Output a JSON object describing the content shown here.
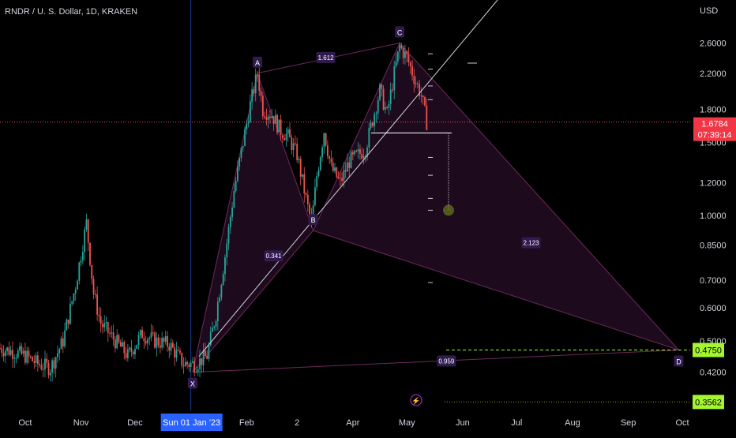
{
  "header": {
    "symbol": "RNDR / U. S. Dollar, 1D, KRAKEN"
  },
  "axis": {
    "currency": "USD",
    "price_ticks": [
      "2.6000",
      "2.2000",
      "1.8000",
      "1.5000",
      "1.2000",
      "1.0000",
      "0.8500",
      "0.7000",
      "0.6000",
      "0.5000",
      "0.4200"
    ],
    "price_tick_values": [
      2.6,
      2.2,
      1.8,
      1.5,
      1.2,
      1.0,
      0.85,
      0.7,
      0.6,
      0.5,
      0.42
    ],
    "time_labels": [
      "Oct",
      "Nov",
      "Dec",
      "Sun 01 Jan '23",
      "Feb",
      "2",
      "Apr",
      "May",
      "Jun",
      "Jul",
      "Aug",
      "Sep",
      "Oct"
    ],
    "time_label_dates": [
      "2022-10-01",
      "2022-11-01",
      "2022-12-01",
      "2023-01-01",
      "2023-02-01",
      "2023-03-01",
      "2023-04-01",
      "2023-05-01",
      "2023-06-01",
      "2023-07-01",
      "2023-08-01",
      "2023-09-01",
      "2023-10-01"
    ]
  },
  "price_badges": {
    "last_price": "1.6784",
    "countdown": "07:39:14",
    "level_upper": "0.4750",
    "level_lower": "0.3562"
  },
  "colors": {
    "up": "#26a69a",
    "down": "#ef5350",
    "pattern_fill": "#2a0f2a",
    "pattern_edge": "#6d2a5a",
    "label_bg": "#311b4e",
    "last_price_bg": "#f23645",
    "target_bg": "#a4f52f",
    "trendline": "#d1d4dc",
    "crosshair": "#2962ff"
  },
  "chart_data": {
    "type": "candlestick",
    "title": "RNDR / U. S. Dollar, 1D, KRAKEN",
    "ylabel": "USD",
    "scale": "log",
    "ylim": [
      0.34,
      3.3
    ],
    "xlim": [
      "2022-09-17",
      "2023-10-01"
    ],
    "last_price": 1.6784,
    "close_path": [
      [
        "2022-09-17",
        0.48
      ],
      [
        "2022-09-25",
        0.47
      ],
      [
        "2022-10-01",
        0.46
      ],
      [
        "2022-10-08",
        0.44
      ],
      [
        "2022-10-15",
        0.43
      ],
      [
        "2022-10-22",
        0.5
      ],
      [
        "2022-10-29",
        0.68
      ],
      [
        "2022-11-04",
        0.96
      ],
      [
        "2022-11-08",
        0.65
      ],
      [
        "2022-11-12",
        0.55
      ],
      [
        "2022-11-20",
        0.5
      ],
      [
        "2022-11-27",
        0.46
      ],
      [
        "2022-12-05",
        0.52
      ],
      [
        "2022-12-12",
        0.5
      ],
      [
        "2022-12-20",
        0.49
      ],
      [
        "2022-12-28",
        0.44
      ],
      [
        "2023-01-04",
        0.44
      ],
      [
        "2023-01-10",
        0.46
      ],
      [
        "2023-01-15",
        0.58
      ],
      [
        "2023-01-20",
        0.8
      ],
      [
        "2023-01-25",
        1.15
      ],
      [
        "2023-01-30",
        1.5
      ],
      [
        "2023-02-03",
        1.85
      ],
      [
        "2023-02-07",
        2.2
      ],
      [
        "2023-02-10",
        1.8
      ],
      [
        "2023-02-15",
        1.75
      ],
      [
        "2023-02-20",
        1.6
      ],
      [
        "2023-02-24",
        1.55
      ],
      [
        "2023-03-01",
        1.4
      ],
      [
        "2023-03-05",
        1.15
      ],
      [
        "2023-03-09",
        0.95
      ],
      [
        "2023-03-12",
        1.25
      ],
      [
        "2023-03-16",
        1.6
      ],
      [
        "2023-03-20",
        1.3
      ],
      [
        "2023-03-25",
        1.2
      ],
      [
        "2023-03-30",
        1.35
      ],
      [
        "2023-04-04",
        1.4
      ],
      [
        "2023-04-08",
        1.45
      ],
      [
        "2023-04-12",
        1.7
      ],
      [
        "2023-04-16",
        2.0
      ],
      [
        "2023-04-20",
        1.75
      ],
      [
        "2023-04-24",
        2.2
      ],
      [
        "2023-04-27",
        2.55
      ],
      [
        "2023-05-01",
        2.4
      ],
      [
        "2023-05-05",
        2.15
      ],
      [
        "2023-05-09",
        1.95
      ],
      [
        "2023-05-12",
        1.6784
      ]
    ],
    "patterns": {
      "points": [
        {
          "label": "X",
          "date": "2023-01-02",
          "price": 0.42
        },
        {
          "label": "A",
          "date": "2023-02-07",
          "price": 2.2
        },
        {
          "label": "B",
          "date": "2023-03-10",
          "price": 0.92
        },
        {
          "label": "C",
          "date": "2023-04-27",
          "price": 2.6
        },
        {
          "label": "D",
          "date": "2023-09-29",
          "price": 0.475
        }
      ],
      "ratios": [
        {
          "label": "1.612",
          "date": "2023-03-17",
          "price": 2.4
        },
        {
          "label": "0.341",
          "date": "2023-02-16",
          "price": 0.8
        },
        {
          "label": "2.123",
          "date": "2023-07-09",
          "price": 0.86
        },
        {
          "label": "0.959",
          "date": "2023-05-23",
          "price": 0.447
        }
      ]
    },
    "horizontal_levels": [
      0.475,
      0.3562
    ]
  }
}
